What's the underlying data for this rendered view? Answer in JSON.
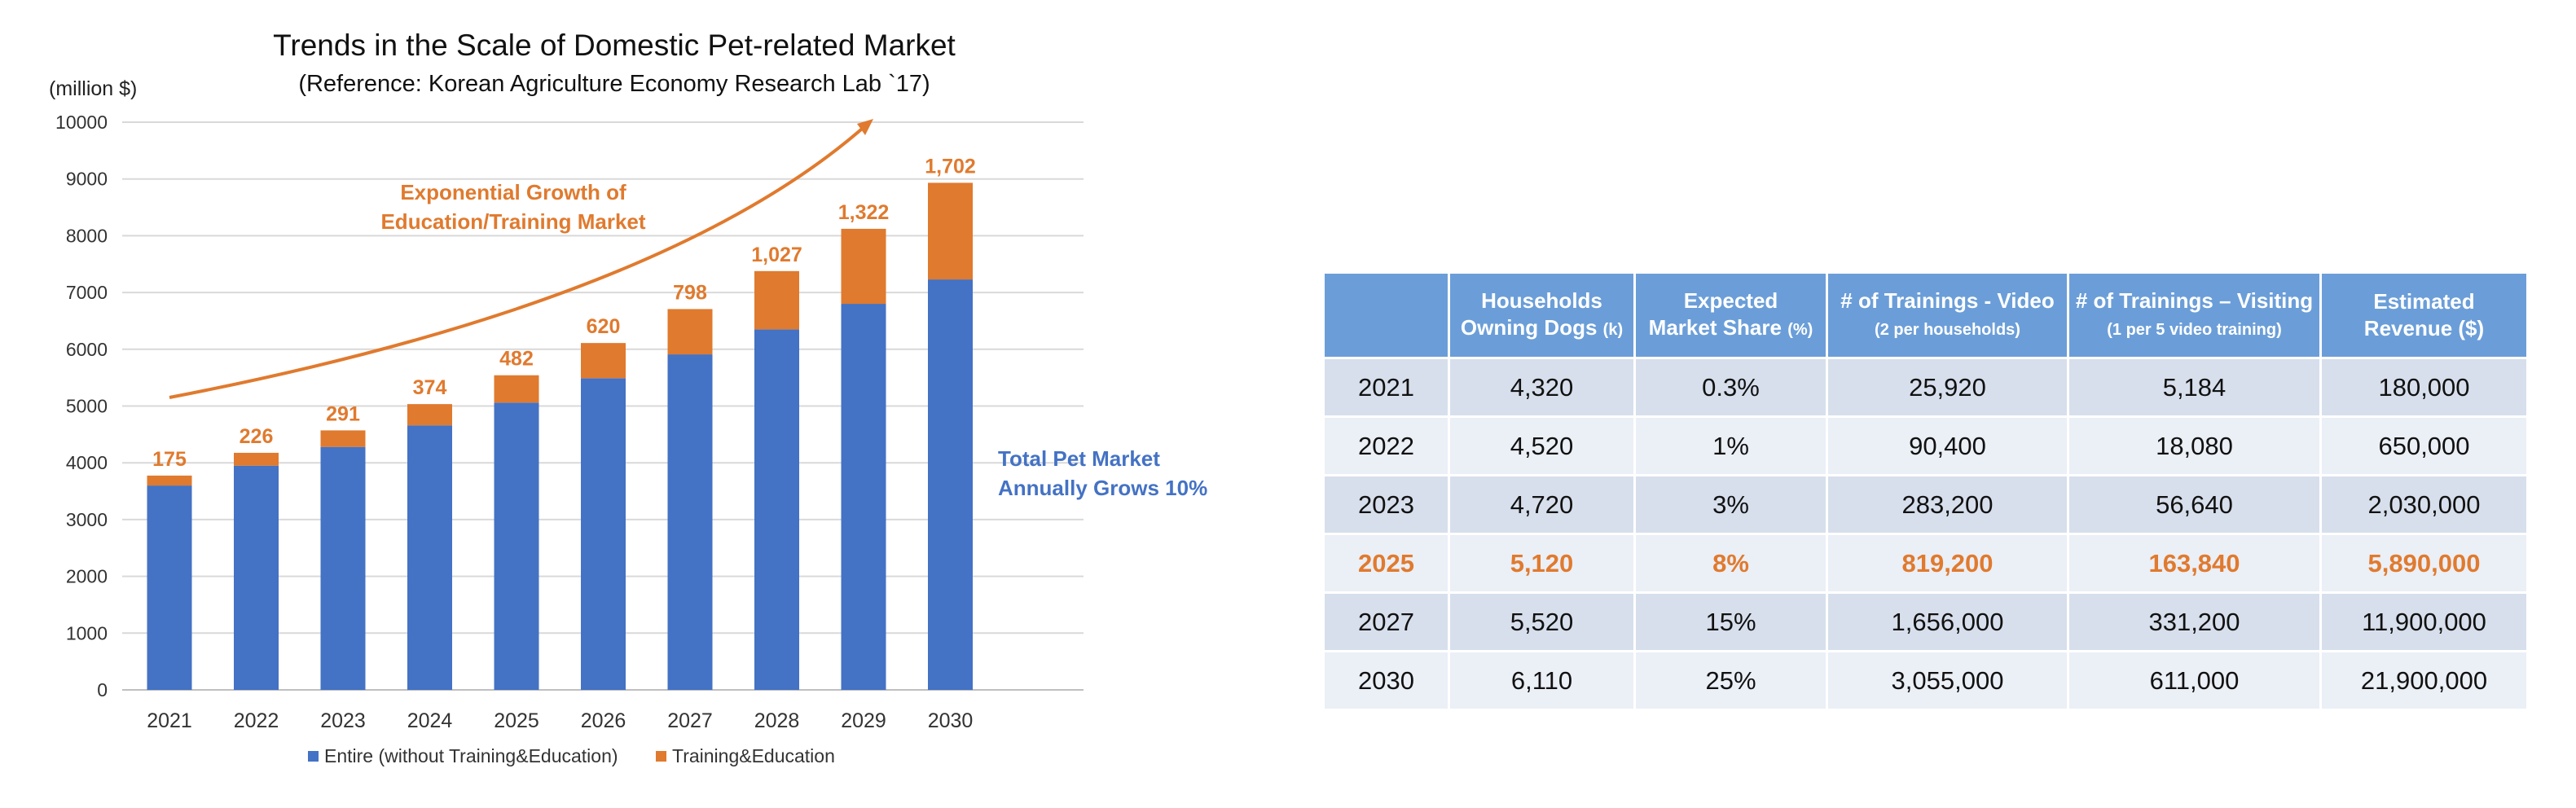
{
  "chart_data": {
    "type": "bar",
    "stacked": true,
    "title": "Trends in the Scale of Domestic Pet-related Market",
    "subtitle": "(Reference: Korean Agriculture Economy Research Lab `17)",
    "ylabel": "(million $)",
    "ylim": [
      0,
      10000
    ],
    "yticks": [
      0,
      1000,
      2000,
      3000,
      4000,
      5000,
      6000,
      7000,
      8000,
      9000,
      10000
    ],
    "grid": true,
    "legend_position": "bottom",
    "categories": [
      "2021",
      "2022",
      "2023",
      "2024",
      "2025",
      "2026",
      "2027",
      "2028",
      "2029",
      "2030"
    ],
    "series": [
      {
        "name": "Entire (without Training&Education)",
        "color": "#4472C4",
        "values": [
          3600,
          3950,
          4280,
          4660,
          5060,
          5490,
          5910,
          6350,
          6800,
          7230
        ]
      },
      {
        "name": "Training&Education",
        "color": "#E07A2E",
        "values": [
          175,
          226,
          291,
          374,
          482,
          620,
          798,
          1027,
          1322,
          1702
        ],
        "labels": [
          "175",
          "226",
          "291",
          "374",
          "482",
          "620",
          "798",
          "1,027",
          "1,322",
          "1,702"
        ]
      }
    ],
    "annotations": [
      {
        "lines": [
          "Exponential Growth of",
          "Education/Training Market"
        ],
        "color": "#E07A2E"
      },
      {
        "lines": [
          "Total Pet Market",
          "Annually Grows 10%"
        ],
        "color": "#4472C4"
      }
    ]
  },
  "table": {
    "headers": [
      {
        "main": "",
        "sub": ""
      },
      {
        "main": "Households",
        "main2": "Owning Dogs",
        "unit": "(k)"
      },
      {
        "main": "Expected",
        "main2": "Market Share",
        "unit": "(%)"
      },
      {
        "main": "# of Trainings - Video",
        "sub": "(2 per households)"
      },
      {
        "main": "# of Trainings – Visiting",
        "sub": "(1 per  5 video training)"
      },
      {
        "main": "Estimated",
        "main2": "Revenue ($)"
      }
    ],
    "rows": [
      {
        "cells": [
          "2021",
          "4,320",
          "0.3%",
          "25,920",
          "5,184",
          "180,000"
        ],
        "highlight": false
      },
      {
        "cells": [
          "2022",
          "4,520",
          "1%",
          "90,400",
          "18,080",
          "650,000"
        ],
        "highlight": false
      },
      {
        "cells": [
          "2023",
          "4,720",
          "3%",
          "283,200",
          "56,640",
          "2,030,000"
        ],
        "highlight": false
      },
      {
        "cells": [
          "2025",
          "5,120",
          "8%",
          "819,200",
          "163,840",
          "5,890,000"
        ],
        "highlight": true
      },
      {
        "cells": [
          "2027",
          "5,520",
          "15%",
          "1,656,000",
          "331,200",
          "11,900,000"
        ],
        "highlight": false
      },
      {
        "cells": [
          "2030",
          "6,110",
          "25%",
          "3,055,000",
          "611,000",
          "21,900,000"
        ],
        "highlight": false
      }
    ]
  }
}
